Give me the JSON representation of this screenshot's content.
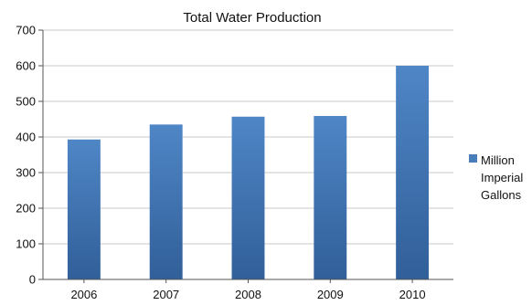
{
  "chart_data": {
    "type": "bar",
    "title": "Total Water Production",
    "categories": [
      "2006",
      "2007",
      "2008",
      "2009",
      "2010"
    ],
    "series": [
      {
        "name": "Million Imperial Gallons",
        "values": [
          393,
          435,
          457,
          459,
          600
        ],
        "color": "#4a7ebb"
      }
    ],
    "ylim": [
      0,
      700
    ],
    "yticks": [
      0,
      100,
      200,
      300,
      400,
      500,
      600,
      700
    ],
    "grid": true,
    "legend": {
      "position": "right",
      "lines": [
        "Million",
        "Imperial",
        "Gallons"
      ]
    }
  }
}
